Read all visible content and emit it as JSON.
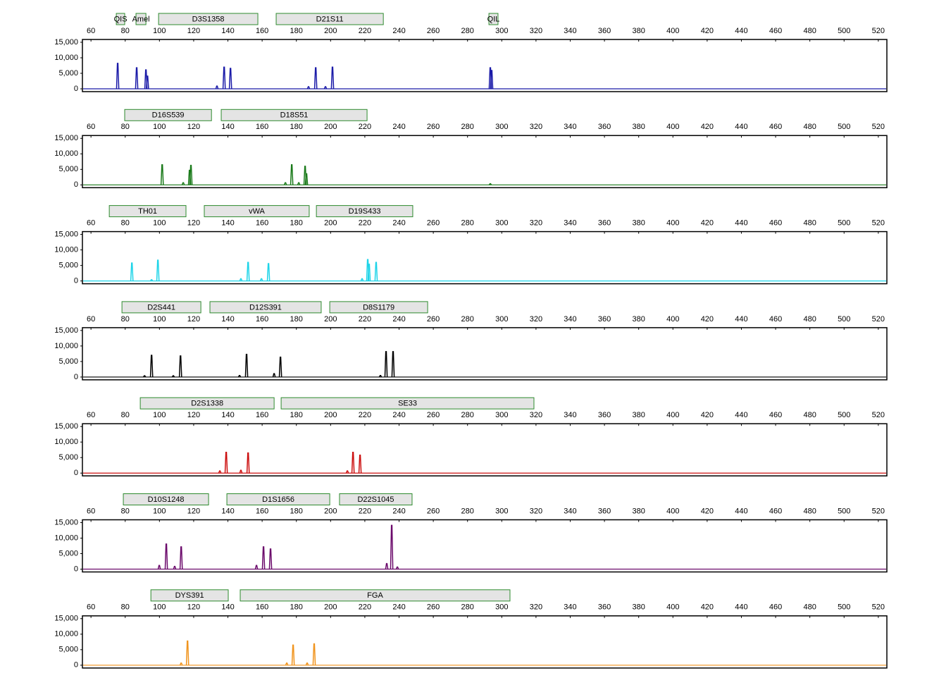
{
  "chart_data": [
    {
      "type": "line",
      "color": "#1a1aa8",
      "markers": [
        {
          "name": "QIS",
          "start": 74.8,
          "end": 79.7
        },
        {
          "name": "Amel",
          "start": 86.3,
          "end": 92.1
        },
        {
          "name": "D3S1358",
          "start": 99.5,
          "end": 157.5
        },
        {
          "name": "D21S11",
          "start": 168.2,
          "end": 230.8
        },
        {
          "name": "QIL",
          "start": 292.5,
          "end": 297.8
        }
      ],
      "x": [
        75.6,
        86.7,
        92.1,
        93.0,
        133.6,
        137.8,
        141.5,
        187.1,
        191.3,
        197.0,
        201.1,
        293.3,
        294.1
      ],
      "values": [
        8200,
        6800,
        6100,
        4100,
        900,
        7000,
        6600,
        700,
        6800,
        700,
        7000,
        6800,
        5900
      ],
      "xlim": [
        55,
        525
      ],
      "xticks": [
        60,
        80,
        100,
        120,
        140,
        160,
        180,
        200,
        220,
        240,
        260,
        280,
        300,
        320,
        340,
        360,
        380,
        400,
        420,
        440,
        460,
        480,
        500,
        520
      ],
      "ylim": [
        -900,
        15900
      ],
      "yticks": [
        0,
        {
          "value": 5000,
          "label": "5,000"
        },
        {
          "value": 10000,
          "label": "10,000"
        },
        {
          "value": 15000,
          "label": "15,000"
        }
      ]
    },
    {
      "type": "line",
      "color": "#1a7a1a",
      "markers": [
        {
          "name": "D16S539",
          "start": 79.7,
          "end": 130.4
        },
        {
          "name": "D18S51",
          "start": 136.1,
          "end": 221.3
        }
      ],
      "x": [
        101.6,
        113.9,
        117.6,
        118.4,
        173.6,
        177.3,
        181.4,
        185.1,
        185.9,
        293.3
      ],
      "values": [
        6500,
        700,
        4700,
        6300,
        700,
        6500,
        700,
        6000,
        3600,
        400
      ],
      "xlim": [
        55,
        525
      ],
      "xticks": [
        60,
        80,
        100,
        120,
        140,
        160,
        180,
        200,
        220,
        240,
        260,
        280,
        300,
        320,
        340,
        360,
        380,
        400,
        420,
        440,
        460,
        480,
        500,
        520
      ],
      "ylim": [
        -900,
        15900
      ],
      "yticks": [
        0,
        {
          "value": 5000,
          "label": "5,000"
        },
        {
          "value": 10000,
          "label": "10,000"
        },
        {
          "value": 15000,
          "label": "15,000"
        }
      ]
    },
    {
      "type": "line",
      "color": "#1ed4e8",
      "markers": [
        {
          "name": "TH01",
          "start": 70.7,
          "end": 115.5
        },
        {
          "name": "vWA",
          "start": 126.2,
          "end": 187.5
        },
        {
          "name": "D19S433",
          "start": 191.7,
          "end": 248.0
        }
      ],
      "x": [
        83.9,
        95.4,
        99.1,
        147.6,
        151.8,
        159.6,
        163.7,
        218.4,
        221.7,
        222.5,
        226.6
      ],
      "values": [
        5800,
        400,
        6700,
        700,
        6000,
        700,
        5600,
        700,
        6900,
        5400,
        6000
      ],
      "xlim": [
        55,
        525
      ],
      "xticks": [
        60,
        80,
        100,
        120,
        140,
        160,
        180,
        200,
        220,
        240,
        260,
        280,
        300,
        320,
        340,
        360,
        380,
        400,
        420,
        440,
        460,
        480,
        500,
        520
      ],
      "ylim": [
        -900,
        15900
      ],
      "yticks": [
        0,
        {
          "value": 5000,
          "label": "5,000"
        },
        {
          "value": 10000,
          "label": "10,000"
        },
        {
          "value": 15000,
          "label": "15,000"
        }
      ]
    },
    {
      "type": "line",
      "color": "#000000",
      "markers": [
        {
          "name": "D2S441",
          "start": 78.1,
          "end": 124.2
        },
        {
          "name": "D12S391",
          "start": 129.5,
          "end": 194.5
        },
        {
          "name": "D8S1179",
          "start": 199.5,
          "end": 256.7
        }
      ],
      "x": [
        91.3,
        95.4,
        108.1,
        112.3,
        146.8,
        150.9,
        167.0,
        170.7,
        229.1,
        232.4,
        236.5
      ],
      "values": [
        400,
        7000,
        400,
        6800,
        500,
        7300,
        1100,
        6400,
        500,
        8200,
        8200
      ],
      "xlim": [
        55,
        525
      ],
      "xticks": [
        60,
        80,
        100,
        120,
        140,
        160,
        180,
        200,
        220,
        240,
        260,
        280,
        300,
        320,
        340,
        360,
        380,
        400,
        420,
        440,
        460,
        480,
        500,
        520
      ],
      "ylim": [
        -900,
        15900
      ],
      "yticks": [
        0,
        {
          "value": 5000,
          "label": "5,000"
        },
        {
          "value": 10000,
          "label": "10,000"
        },
        {
          "value": 15000,
          "label": "15,000"
        }
      ]
    },
    {
      "type": "line",
      "color": "#cc1010",
      "markers": [
        {
          "name": "D2S1338",
          "start": 88.8,
          "end": 167.0
        },
        {
          "name": "SE33",
          "start": 171.1,
          "end": 318.8
        }
      ],
      "x": [
        135.3,
        139.0,
        147.6,
        151.8,
        209.8,
        213.1,
        217.2
      ],
      "values": [
        700,
        6700,
        900,
        6500,
        700,
        6700,
        5800
      ],
      "xlim": [
        55,
        525
      ],
      "xticks": [
        60,
        80,
        100,
        120,
        140,
        160,
        180,
        200,
        220,
        240,
        260,
        280,
        300,
        320,
        340,
        360,
        380,
        400,
        420,
        440,
        460,
        480,
        500,
        520
      ],
      "ylim": [
        -900,
        15900
      ],
      "yticks": [
        0,
        {
          "value": 5000,
          "label": "5,000"
        },
        {
          "value": 10000,
          "label": "10,000"
        },
        {
          "value": 15000,
          "label": "15,000"
        }
      ]
    },
    {
      "type": "line",
      "color": "#6b0a6b",
      "markers": [
        {
          "name": "D10S1248",
          "start": 78.9,
          "end": 128.7
        },
        {
          "name": "D1S1656",
          "start": 139.4,
          "end": 199.5
        },
        {
          "name": "D22S1045",
          "start": 205.2,
          "end": 247.6
        }
      ],
      "x": [
        99.9,
        104.0,
        108.9,
        112.7,
        156.7,
        160.8,
        164.9,
        232.8,
        235.7,
        239.0
      ],
      "values": [
        1200,
        8100,
        900,
        7200,
        1200,
        7200,
        6500,
        1800,
        14100,
        700
      ],
      "xlim": [
        55,
        525
      ],
      "xticks": [
        60,
        80,
        100,
        120,
        140,
        160,
        180,
        200,
        220,
        240,
        260,
        280,
        300,
        320,
        340,
        360,
        380,
        400,
        420,
        440,
        460,
        480,
        500,
        520
      ],
      "ylim": [
        -900,
        15900
      ],
      "yticks": [
        0,
        {
          "value": 5000,
          "label": "5,000"
        },
        {
          "value": 10000,
          "label": "10,000"
        },
        {
          "value": 15000,
          "label": "15,000"
        }
      ]
    },
    {
      "type": "line",
      "color": "#f0941e",
      "markers": [
        {
          "name": "DYS391",
          "start": 95.0,
          "end": 140.2
        },
        {
          "name": "FGA",
          "start": 147.2,
          "end": 304.8
        }
      ],
      "x": [
        112.7,
        116.4,
        174.4,
        178.1,
        186.3,
        190.4
      ],
      "values": [
        700,
        7800,
        700,
        6500,
        700,
        6900
      ],
      "xlim": [
        55,
        525
      ],
      "xticks": [
        60,
        80,
        100,
        120,
        140,
        160,
        180,
        200,
        220,
        240,
        260,
        280,
        300,
        320,
        340,
        360,
        380,
        400,
        420,
        440,
        460,
        480,
        500,
        520
      ],
      "ylim": [
        -900,
        15900
      ],
      "yticks": [
        0,
        {
          "value": 5000,
          "label": "5,000"
        },
        {
          "value": 10000,
          "label": "10,000"
        },
        {
          "value": 15000,
          "label": "15,000"
        }
      ]
    }
  ]
}
